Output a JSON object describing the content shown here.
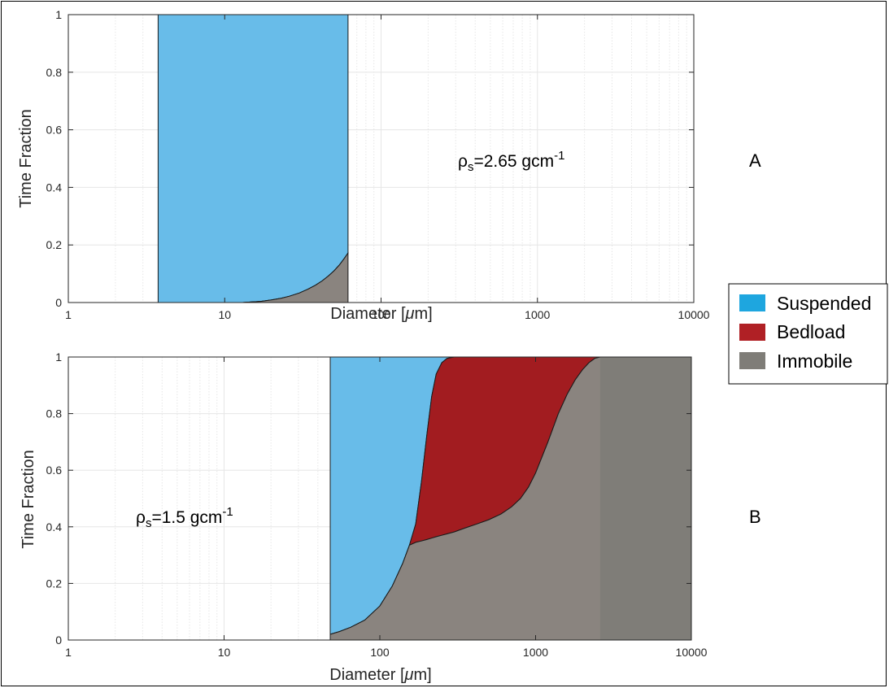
{
  "colors": {
    "suspended": "#68bce9",
    "bedload": "#a21c20",
    "immobile": "#8a847f",
    "immobile_dark": "#7f7d78",
    "grid": "#e6e6e6",
    "axis": "#262626"
  },
  "legend": {
    "items": [
      {
        "label": "Suspended",
        "swatch": "#1ea6df"
      },
      {
        "label": "Bedload",
        "swatch": "#b02025"
      },
      {
        "label": "Immobile",
        "swatch": "#7f7d78"
      }
    ]
  },
  "chart_data": [
    {
      "type": "area",
      "panel_label": "A",
      "annotation": {
        "rho": "ρ",
        "sub": "s",
        "value": "=2.65 gcm",
        "sup": "-1"
      },
      "xlabel": {
        "pre": "Diameter [",
        "mu": "μ",
        "post": "m]"
      },
      "ylabel": "Time Fraction",
      "xscale": "log",
      "xlim": [
        1,
        10000
      ],
      "ylim": [
        0,
        1
      ],
      "xticks": [
        1,
        10,
        100,
        1000,
        10000
      ],
      "xtick_labels": [
        "1",
        "10",
        "100",
        "1000",
        "10000"
      ],
      "yticks": [
        0,
        0.2,
        0.4,
        0.6,
        0.8,
        1
      ],
      "ytick_labels": [
        "0",
        "0.2",
        "0.4",
        "0.6",
        "0.8",
        "1"
      ],
      "grid": true,
      "x": [
        3.75,
        13,
        15,
        17,
        20,
        23,
        26,
        30,
        34,
        38,
        42,
        46,
        50,
        54,
        58,
        61.5
      ],
      "immobile_top": [
        0,
        0,
        0.002,
        0.004,
        0.009,
        0.015,
        0.022,
        0.033,
        0.046,
        0.06,
        0.075,
        0.092,
        0.11,
        0.13,
        0.152,
        0.172
      ],
      "bedload_top": [
        0,
        0,
        0.002,
        0.004,
        0.009,
        0.015,
        0.022,
        0.033,
        0.046,
        0.06,
        0.075,
        0.092,
        0.11,
        0.13,
        0.152,
        0.172
      ],
      "suspended_top": [
        1,
        1,
        1,
        1,
        1,
        1,
        1,
        1,
        1,
        1,
        1,
        1,
        1,
        1,
        1,
        1
      ]
    },
    {
      "type": "area",
      "panel_label": "B",
      "annotation": {
        "rho": "ρ",
        "sub": "s",
        "value": "=1.5 gcm",
        "sup": "-1"
      },
      "xlabel": {
        "pre": "Diameter [",
        "mu": "μ",
        "post": "m]"
      },
      "ylabel": "Time Fraction",
      "xscale": "log",
      "xlim": [
        1,
        10000
      ],
      "ylim": [
        0,
        1
      ],
      "xticks": [
        1,
        10,
        100,
        1000,
        10000
      ],
      "xtick_labels": [
        "1",
        "10",
        "100",
        "1000",
        "10000"
      ],
      "yticks": [
        0,
        0.2,
        0.4,
        0.6,
        0.8,
        1
      ],
      "ytick_labels": [
        "0",
        "0.2",
        "0.4",
        "0.6",
        "0.8",
        "1"
      ],
      "grid": true,
      "x": [
        48,
        55,
        65,
        80,
        100,
        120,
        140,
        155,
        170,
        185,
        200,
        215,
        230,
        250,
        270,
        300,
        350,
        420,
        500,
        600,
        700,
        800,
        900,
        1000,
        1200,
        1400,
        1600,
        1800,
        2000,
        2200,
        2400,
        2600,
        10000
      ],
      "immobile_top": [
        0.02,
        0.03,
        0.045,
        0.07,
        0.12,
        0.19,
        0.27,
        0.335,
        0.345,
        0.35,
        0.355,
        0.36,
        0.365,
        0.37,
        0.375,
        0.382,
        0.395,
        0.41,
        0.425,
        0.445,
        0.47,
        0.5,
        0.54,
        0.59,
        0.7,
        0.8,
        0.87,
        0.92,
        0.955,
        0.98,
        0.995,
        1,
        1
      ],
      "bedload_top": [
        0.02,
        0.03,
        0.045,
        0.07,
        0.12,
        0.19,
        0.27,
        0.335,
        0.41,
        0.56,
        0.72,
        0.86,
        0.94,
        0.98,
        0.995,
        1,
        1,
        1,
        1,
        1,
        1,
        1,
        1,
        1,
        1,
        1,
        1,
        1,
        1,
        1,
        1,
        1,
        1
      ],
      "suspended_top": [
        1,
        1,
        1,
        1,
        1,
        1,
        1,
        1,
        1,
        1,
        1,
        1,
        1,
        1,
        1,
        1,
        1,
        1,
        1,
        1,
        1,
        1,
        1,
        1,
        1,
        1,
        1,
        1,
        1,
        1,
        1,
        1,
        1
      ],
      "immobile_only_from_x": 2600
    }
  ]
}
